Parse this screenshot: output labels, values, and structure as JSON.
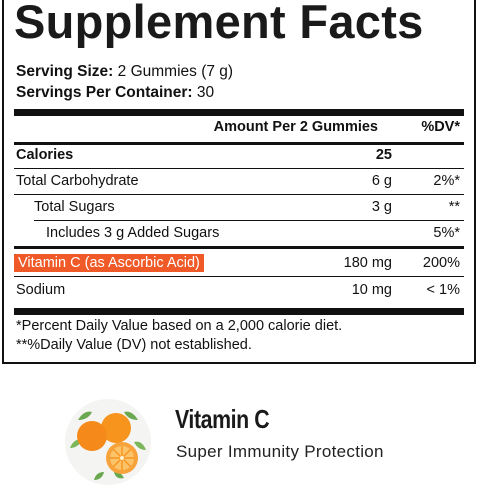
{
  "title": "Supplement Facts",
  "serving": {
    "size_label": "Serving Size:",
    "size_value": "2 Gummies (7 g)",
    "per_container_label": "Servings Per Container:",
    "per_container_value": "30"
  },
  "header": {
    "amount": "Amount Per 2 Gummies",
    "dv": "%DV*"
  },
  "rows": [
    {
      "label": "Calories",
      "amount": "25",
      "dv": ""
    },
    {
      "label": "Total Carbohydrate",
      "amount": "6 g",
      "dv": "2%*"
    },
    {
      "label": "Total Sugars",
      "amount": "3 g",
      "dv": "**"
    },
    {
      "label": "Includes 3 g Added Sugars",
      "amount": "",
      "dv": "5%*"
    },
    {
      "label": "Vitamin C (as Ascorbic Acid)",
      "amount": "180 mg",
      "dv": "200%"
    },
    {
      "label": "Sodium",
      "amount": "10 mg",
      "dv": "< 1%"
    }
  ],
  "footnotes": [
    "*Percent Daily Value based on a 2,000 calorie diet.",
    "**%Daily Value (DV) not established."
  ],
  "badge": {
    "icon": "orange-fruit-icon",
    "title": "Vitamin C",
    "subtitle": "Super Immunity Protection"
  },
  "colors": {
    "highlight": "#f05a28",
    "text": "#111111",
    "orange": "#f7941d",
    "leaf": "#6aa84f"
  }
}
